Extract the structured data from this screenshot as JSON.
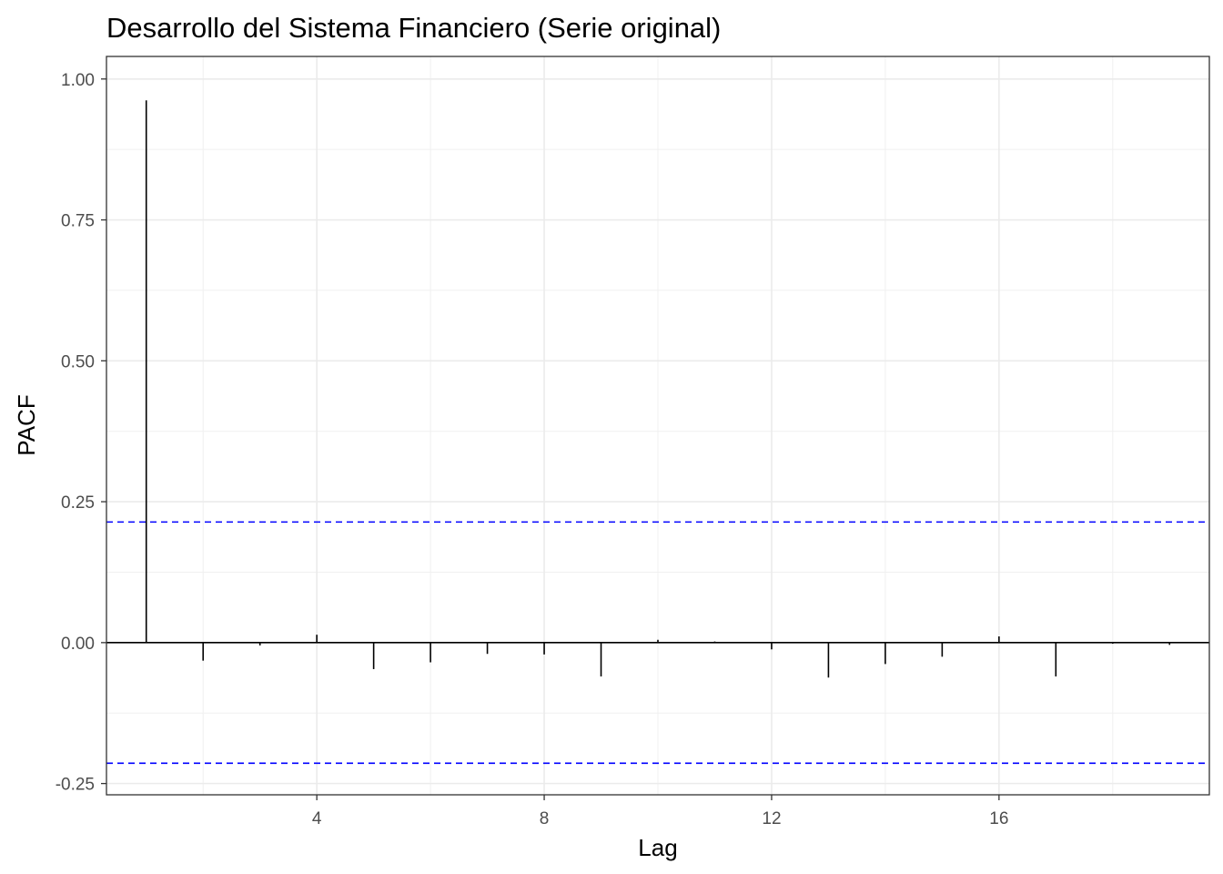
{
  "chart_data": {
    "type": "bar",
    "title": "Desarrollo del Sistema Financiero (Serie original)",
    "xlabel": "Lag",
    "ylabel": "PACF",
    "xlim": [
      0.3,
      19.7
    ],
    "ylim": [
      -0.27,
      1.04
    ],
    "x_ticks": [
      4,
      8,
      12,
      16
    ],
    "x_tick_labels": [
      "4",
      "8",
      "12",
      "16"
    ],
    "y_ticks": [
      -0.25,
      0,
      0.25,
      0.5,
      0.75,
      1.0
    ],
    "y_tick_labels": [
      "-0.25",
      "0.00",
      "0.25",
      "0.50",
      "0.75",
      "1.00"
    ],
    "x": [
      1,
      2,
      3,
      4,
      5,
      6,
      7,
      8,
      9,
      10,
      11,
      12,
      13,
      14,
      15,
      16,
      17,
      18,
      19
    ],
    "values": [
      0.962,
      -0.032,
      -0.005,
      0.014,
      -0.047,
      -0.035,
      -0.02,
      -0.021,
      -0.06,
      0.005,
      0.002,
      -0.012,
      -0.062,
      -0.038,
      -0.025,
      0.011,
      -0.06,
      -0.002,
      -0.004
    ],
    "confidence_bounds": [
      0.214,
      -0.214
    ],
    "confidence_color": "#0000ff",
    "grid": true,
    "legend": "none"
  }
}
